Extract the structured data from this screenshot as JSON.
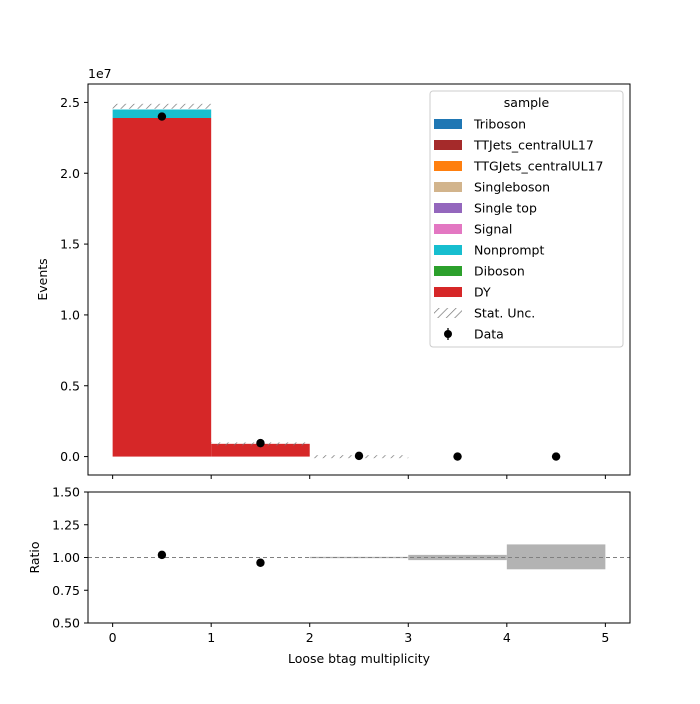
{
  "chart_data": [
    {
      "type": "bar",
      "stacked": true,
      "panel": "main",
      "ylabel": "Events",
      "offset_text": "1e7",
      "xlim": [
        -0.25,
        5.25
      ],
      "ylim": [
        -0.13,
        2.63
      ],
      "bin_edges": [
        0,
        1,
        2,
        3,
        4,
        5
      ],
      "yticks": [
        0.0,
        0.5,
        1.0,
        1.5,
        2.0,
        2.5
      ],
      "ytick_labels": [
        "0.0",
        "0.5",
        "1.0",
        "1.5",
        "2.0",
        "2.5"
      ],
      "series": [
        {
          "name": "DY",
          "color": "#d62728",
          "values": [
            2.39,
            0.09,
            0.0,
            0.0,
            0.0
          ]
        },
        {
          "name": "Diboson",
          "color": "#2ca02c",
          "values": [
            0.0,
            0.0,
            0.0,
            0.0,
            0.0
          ]
        },
        {
          "name": "Nonprompt",
          "color": "#17becf",
          "values": [
            0.06,
            0.0,
            0.0,
            0.0,
            0.0
          ]
        },
        {
          "name": "Signal",
          "color": "#e377c2",
          "values": [
            0.0,
            0.0,
            0.0,
            0.0,
            0.0
          ]
        },
        {
          "name": "Single top",
          "color": "#9467bd",
          "values": [
            0.0,
            0.0,
            0.0,
            0.0,
            0.0
          ]
        },
        {
          "name": "Singleboson",
          "color": "#d2b48c",
          "values": [
            0.0,
            0.0,
            0.0,
            0.0,
            0.0
          ]
        },
        {
          "name": "TTGJets_centralUL17",
          "color": "#ff7f0e",
          "values": [
            0.0,
            0.0,
            0.0,
            0.0,
            0.0
          ]
        },
        {
          "name": "TTJets_centralUL17",
          "color": "#a52a2a",
          "values": [
            0.0,
            0.0,
            0.0,
            0.0,
            0.0
          ]
        },
        {
          "name": "Triboson",
          "color": "#1f77b4",
          "values": [
            0.0,
            0.0,
            0.0,
            0.0,
            0.0
          ]
        }
      ],
      "stat_unc": {
        "name": "Stat. Unc.",
        "low": [
          2.455,
          0.085,
          0.0,
          0.0,
          0.0
        ],
        "high": [
          2.49,
          0.1,
          0.01,
          0.0,
          0.0
        ]
      },
      "data": {
        "name": "Data",
        "x": [
          0.5,
          1.5,
          2.5,
          3.5,
          4.5
        ],
        "y": [
          2.4,
          0.095,
          0.005,
          0.0,
          0.0
        ]
      },
      "legend": {
        "title": "sample",
        "placement": "upper right",
        "entries": [
          "Triboson",
          "TTJets_centralUL17",
          "TTGJets_centralUL17",
          "Singleboson",
          "Single top",
          "Signal",
          "Nonprompt",
          "Diboson",
          "DY",
          "Stat. Unc.",
          "Data"
        ]
      }
    },
    {
      "type": "scatter",
      "panel": "ratio",
      "ylabel": "Ratio",
      "xlabel": "Loose btag multiplicity",
      "xlim": [
        -0.25,
        5.25
      ],
      "ylim": [
        0.5,
        1.5
      ],
      "xticks": [
        0,
        1,
        2,
        3,
        4,
        5
      ],
      "xtick_labels": [
        "0",
        "1",
        "2",
        "3",
        "4",
        "5"
      ],
      "yticks": [
        0.5,
        0.75,
        1.0,
        1.25,
        1.5
      ],
      "ytick_labels": [
        "0.50",
        "0.75",
        "1.00",
        "1.25",
        "1.50"
      ],
      "reference_line": 1.0,
      "points": {
        "x": [
          0.5,
          1.5
        ],
        "y": [
          1.02,
          0.96
        ]
      },
      "unc_band": {
        "low": [
          1.0,
          1.0,
          0.995,
          0.98,
          0.91
        ],
        "high": [
          1.0,
          1.0,
          1.005,
          1.02,
          1.1
        ]
      }
    }
  ]
}
